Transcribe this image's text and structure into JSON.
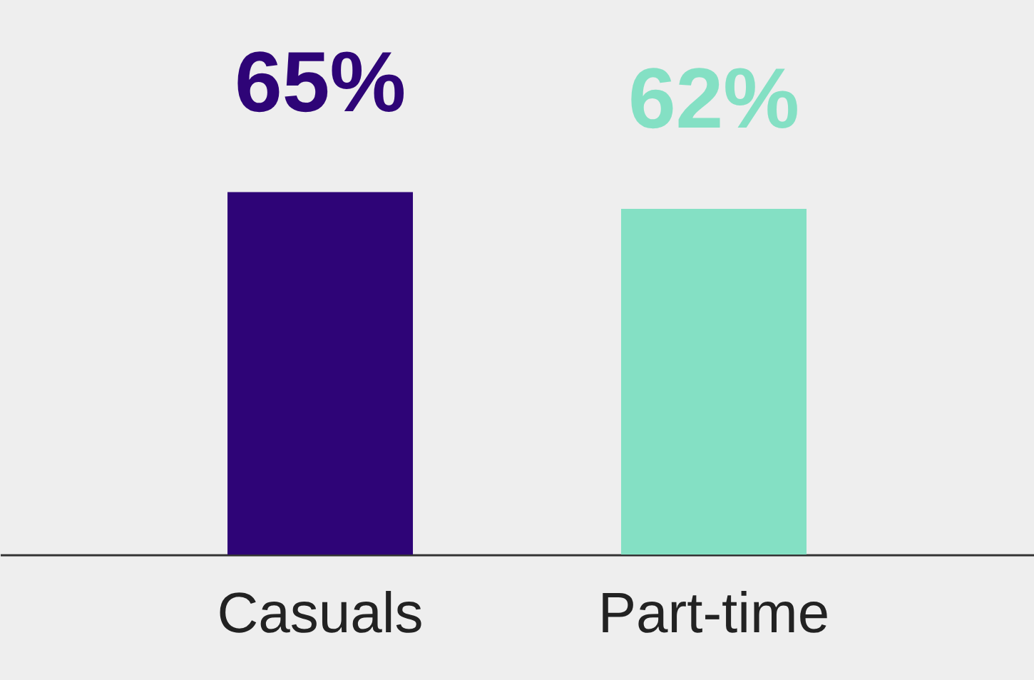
{
  "chart_data": {
    "type": "bar",
    "categories": [
      "Casuals",
      "Part-time"
    ],
    "values": [
      65,
      62
    ],
    "colors": [
      "#2e0477",
      "#84e0c4"
    ],
    "value_labels": [
      "65%",
      "62%"
    ]
  }
}
